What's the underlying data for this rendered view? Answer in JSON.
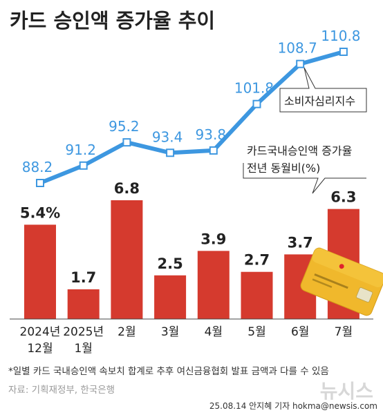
{
  "chart_data": {
    "type": "bar",
    "title": "카드 승인액 증가율 추이",
    "categories": [
      [
        "2024년",
        "12월"
      ],
      [
        "2025년",
        "1월"
      ],
      [
        "2월"
      ],
      [
        "3월"
      ],
      [
        "4월"
      ],
      [
        "5월"
      ],
      [
        "6월"
      ],
      [
        "7월"
      ]
    ],
    "series": [
      {
        "name": "카드국내승인액 증가율 전년 동월비(%)",
        "kind": "bar",
        "values": [
          5.4,
          1.7,
          6.8,
          2.5,
          3.9,
          2.7,
          3.7,
          6.3
        ],
        "labels": [
          "5.4%",
          "1.7",
          "6.8",
          "2.5",
          "3.9",
          "2.7",
          "3.7",
          "6.3"
        ],
        "color": "#d53a2e"
      },
      {
        "name": "소비자심리지수",
        "kind": "line",
        "values": [
          88.2,
          91.2,
          95.2,
          93.4,
          93.8,
          101.8,
          108.7,
          110.8
        ],
        "labels": [
          "88.2",
          "91.2",
          "95.2",
          "93.4",
          "93.8",
          "101.8",
          "108.7",
          "110.8"
        ],
        "color": "#3d97e0"
      }
    ],
    "annotations": {
      "line_callout": "소비자심리지수",
      "bar_callout": [
        "카드국내승인액 증가율",
        "전년 동월비(%)"
      ]
    },
    "footnote": "*일별 카드 국내승인액 속보치 합계로 추후 여신금융협회 발표 금액과 다를 수 있음",
    "source": "자료: 기획재정부, 한국은행",
    "credit": "25.08.14 안지혜 기자 hokma@newsis.com",
    "watermark": "뉴시스"
  }
}
